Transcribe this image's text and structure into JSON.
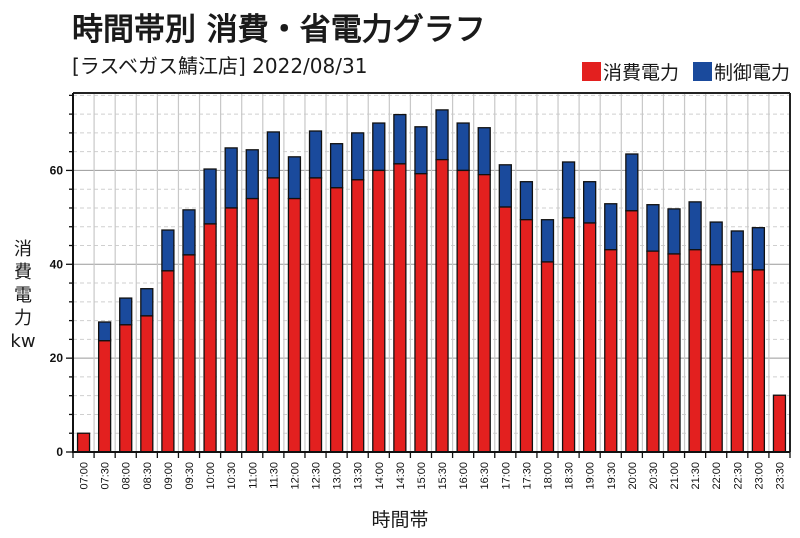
{
  "header": {
    "title": "時間帯別 消費・省電力グラフ",
    "subtitle": "[ラスベガス鯖江店] 2022/08/31"
  },
  "legend": [
    {
      "label": "消費電力",
      "color": "#e3201f"
    },
    {
      "label": "制御電力",
      "color": "#1a4a9c"
    }
  ],
  "ylabel_chars": [
    "消",
    "費",
    "電",
    "力",
    "kw"
  ],
  "chart_data": {
    "type": "bar",
    "stacked": true,
    "title": "時間帯別 消費・省電力グラフ",
    "subtitle": "[ラスベガス鯖江店] 2022/08/31",
    "xlabel": "時間帯",
    "ylabel": "消費電力 kw",
    "ylim": [
      0,
      76.5
    ],
    "yticks": [
      0,
      20,
      40,
      60
    ],
    "yminor_step": 4,
    "grid": true,
    "legend_position": "top-right",
    "categories": [
      "07:00",
      "07:30",
      "08:00",
      "08:30",
      "09:00",
      "09:30",
      "10:00",
      "10:30",
      "11:00",
      "11:30",
      "12:00",
      "12:30",
      "13:00",
      "13:30",
      "14:00",
      "14:30",
      "15:00",
      "15:30",
      "16:00",
      "16:30",
      "17:00",
      "17:30",
      "18:00",
      "18:30",
      "19:00",
      "19:30",
      "20:00",
      "20:30",
      "21:00",
      "21:30",
      "22:00",
      "22:30",
      "23:00",
      "23:30"
    ],
    "series": [
      {
        "name": "消費電力",
        "color": "#e3201f",
        "values": [
          4.0,
          23.7,
          27.1,
          29.0,
          38.6,
          42.0,
          48.6,
          52.0,
          54.0,
          58.4,
          54.0,
          58.4,
          56.3,
          58.0,
          60.0,
          61.4,
          59.3,
          62.3,
          60.0,
          59.1,
          52.2,
          49.5,
          40.5,
          49.9,
          48.8,
          43.1,
          51.4,
          42.8,
          42.2,
          43.1,
          39.9,
          38.4,
          38.8,
          12.1
        ]
      },
      {
        "name": "制御電力",
        "color": "#1a4a9c",
        "values": [
          0.0,
          4.0,
          5.7,
          5.8,
          8.7,
          9.6,
          11.7,
          12.8,
          10.4,
          9.8,
          8.9,
          10.0,
          9.4,
          10.0,
          10.1,
          10.5,
          10.0,
          10.6,
          10.1,
          10.0,
          9.0,
          8.1,
          9.0,
          11.9,
          8.8,
          9.8,
          12.1,
          9.9,
          9.6,
          10.2,
          9.1,
          8.7,
          9.0,
          0.0
        ]
      }
    ]
  },
  "xlabel": "時間帯"
}
